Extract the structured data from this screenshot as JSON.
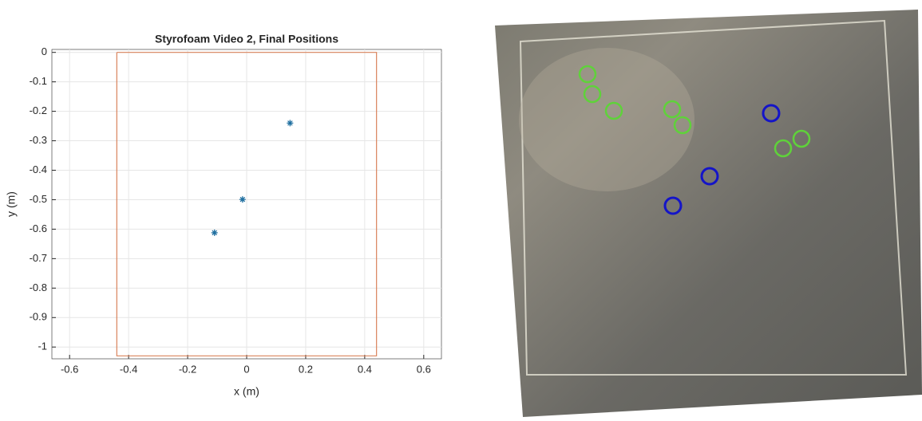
{
  "chart_data": {
    "type": "scatter",
    "title": "Styrofoam Video 2, Final Positions",
    "xlabel": "x (m)",
    "ylabel": "y (m)",
    "points": {
      "x": [
        0.147,
        -0.014,
        -0.109
      ],
      "y": [
        -0.24,
        -0.499,
        -0.612
      ],
      "color": "#1f6fa0"
    },
    "boundary": {
      "x": [
        -0.44,
        0.44,
        0.44,
        -0.44,
        -0.44
      ],
      "y": [
        0,
        0,
        -1.03,
        -1.03,
        0
      ],
      "color": "#d9825b"
    },
    "xlim": [
      -0.66,
      0.66
    ],
    "ylim": [
      -1.04,
      0.01
    ],
    "xticks": [
      -0.6,
      -0.4,
      -0.2,
      0,
      0.2,
      0.4,
      0.6
    ],
    "yticks": [
      0,
      -0.1,
      -0.2,
      -0.3,
      -0.4,
      -0.5,
      -0.6,
      -0.7,
      -0.8,
      -0.9,
      -1
    ],
    "grid": true
  }
}
